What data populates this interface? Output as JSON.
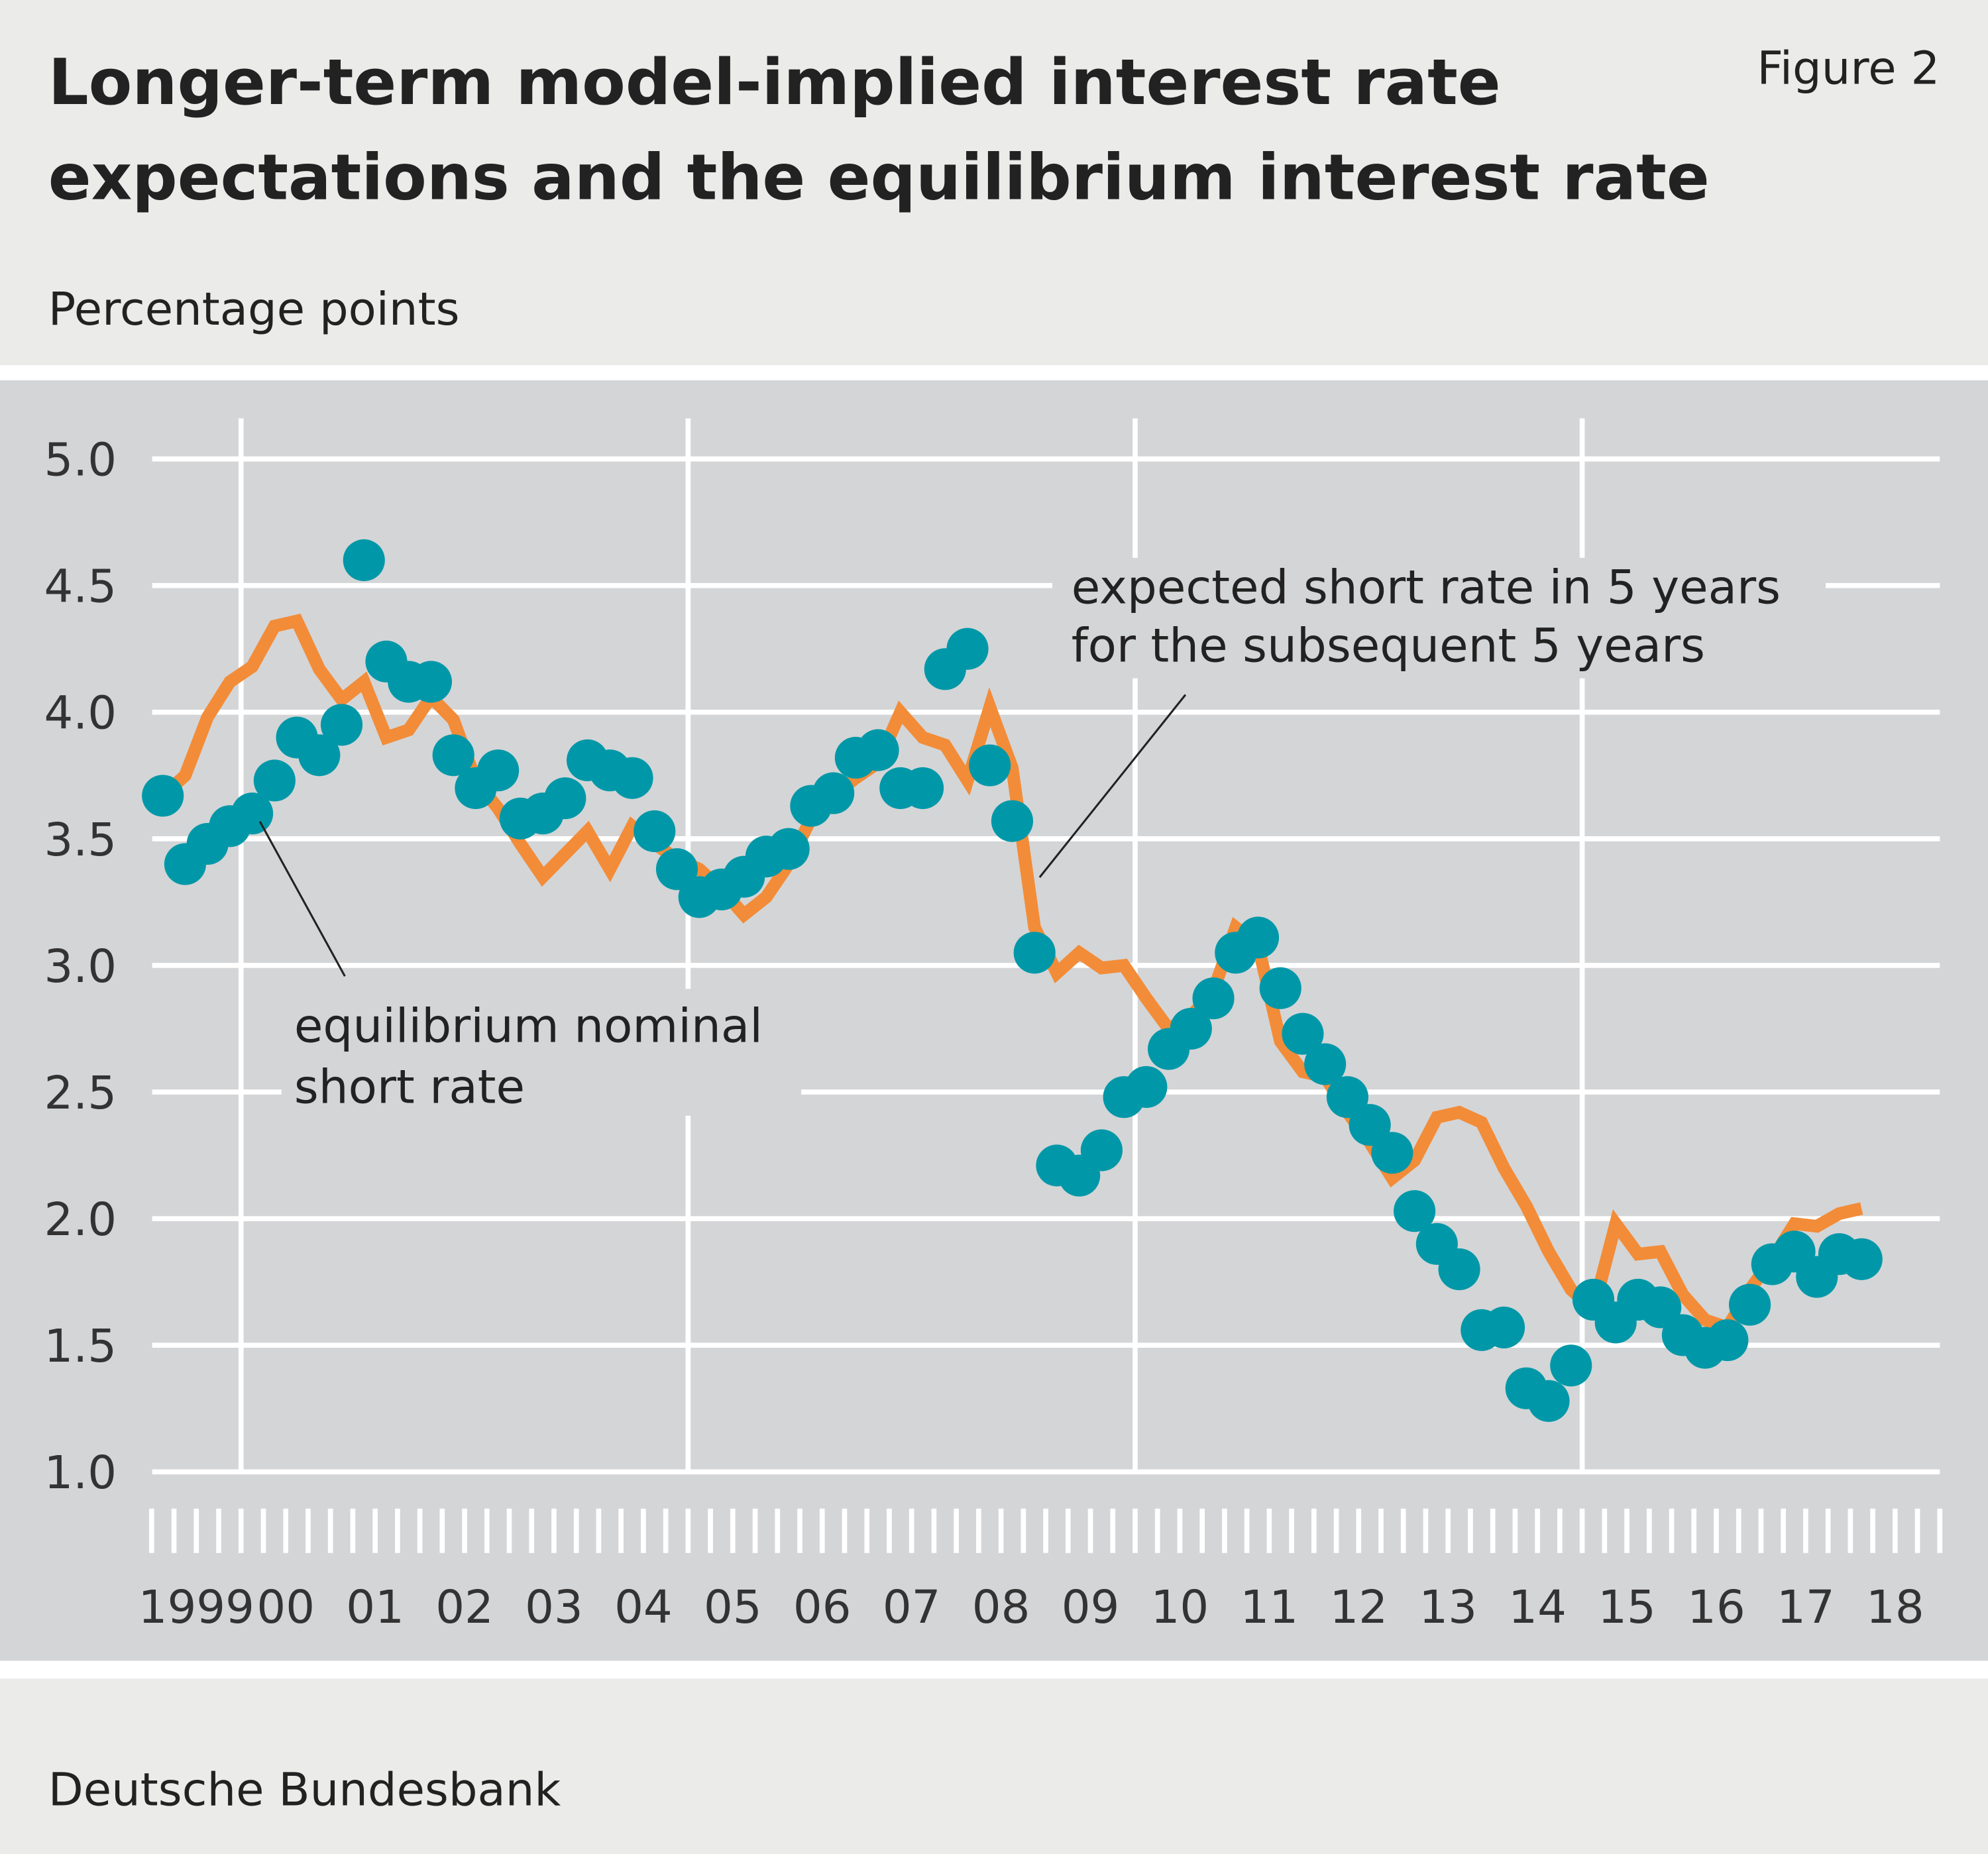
{
  "figure_label": "Figure 2",
  "source": "Deutsche Bundesbank",
  "chart_data": {
    "type": "line",
    "title_lines": [
      "Longer-term model-implied interest rate",
      "expectations and the equilibrium interest rate"
    ],
    "y_label": "Percentage points",
    "xlim": [
      1999,
      2019
    ],
    "xticks": [
      {
        "value": 1999.5,
        "label": "1999"
      },
      {
        "value": 2000.5,
        "label": "00"
      },
      {
        "value": 2001.5,
        "label": "01"
      },
      {
        "value": 2002.5,
        "label": "02"
      },
      {
        "value": 2003.5,
        "label": "03"
      },
      {
        "value": 2004.5,
        "label": "04"
      },
      {
        "value": 2005.5,
        "label": "05"
      },
      {
        "value": 2006.5,
        "label": "06"
      },
      {
        "value": 2007.5,
        "label": "07"
      },
      {
        "value": 2008.5,
        "label": "08"
      },
      {
        "value": 2009.5,
        "label": "09"
      },
      {
        "value": 2010.5,
        "label": "10"
      },
      {
        "value": 2011.5,
        "label": "11"
      },
      {
        "value": 2012.5,
        "label": "12"
      },
      {
        "value": 2013.5,
        "label": "13"
      },
      {
        "value": 2014.5,
        "label": "14"
      },
      {
        "value": 2015.5,
        "label": "15"
      },
      {
        "value": 2016.5,
        "label": "16"
      },
      {
        "value": 2017.5,
        "label": "17"
      },
      {
        "value": 2018.5,
        "label": "18"
      }
    ],
    "xgrid": [
      2000,
      2005,
      2010,
      2015
    ],
    "ylim": [
      1.0,
      5.0
    ],
    "yticks": [
      {
        "value": 1.0,
        "label": "1.0"
      },
      1.5,
      {
        "value": 2.0,
        "label": "2.0"
      },
      2.5,
      {
        "value": 3.0,
        "label": "3.0"
      },
      3.5,
      {
        "value": 4.0,
        "label": "4.0"
      },
      4.5,
      {
        "value": 5.0,
        "label": "5.0"
      }
    ],
    "grid": true,
    "x": [
      1999.125,
      1999.375,
      1999.625,
      1999.875,
      2000.125,
      2000.375,
      2000.625,
      2000.875,
      2001.125,
      2001.375,
      2001.625,
      2001.875,
      2002.125,
      2002.375,
      2002.625,
      2002.875,
      2003.125,
      2003.375,
      2003.625,
      2003.875,
      2004.125,
      2004.375,
      2004.625,
      2004.875,
      2005.125,
      2005.375,
      2005.625,
      2005.875,
      2006.125,
      2006.375,
      2006.625,
      2006.875,
      2007.125,
      2007.375,
      2007.625,
      2007.875,
      2008.125,
      2008.375,
      2008.625,
      2008.875,
      2009.125,
      2009.375,
      2009.625,
      2009.875,
      2010.125,
      2010.375,
      2010.625,
      2010.875,
      2011.125,
      2011.375,
      2011.625,
      2011.875,
      2012.125,
      2012.375,
      2012.625,
      2012.875,
      2013.125,
      2013.375,
      2013.625,
      2013.875,
      2014.125,
      2014.375,
      2014.625,
      2014.875,
      2015.125,
      2015.375,
      2015.625,
      2015.875,
      2016.125,
      2016.375,
      2016.625,
      2016.875,
      2017.125,
      2017.375,
      2017.625,
      2017.875,
      2018.125
    ],
    "series": [
      {
        "style": "line",
        "color": "#f28c38",
        "values": [
          3.67,
          3.75,
          3.98,
          4.12,
          4.18,
          4.34,
          4.36,
          4.17,
          4.05,
          4.12,
          3.9,
          3.93,
          4.06,
          3.97,
          3.73,
          3.62,
          3.48,
          3.35,
          3.44,
          3.53,
          3.38,
          3.55,
          3.48,
          3.42,
          3.38,
          3.3,
          3.2,
          3.27,
          3.4,
          3.58,
          3.67,
          3.74,
          3.8,
          4.0,
          3.9,
          3.87,
          3.73,
          4.02,
          3.78,
          3.15,
          2.97,
          3.05,
          2.99,
          3.0,
          2.87,
          2.75,
          2.8,
          2.9,
          3.15,
          3.08,
          2.7,
          2.58,
          2.56,
          2.42,
          2.3,
          2.16,
          2.23,
          2.4,
          2.42,
          2.38,
          2.2,
          2.05,
          1.87,
          1.72,
          1.64,
          1.98,
          1.86,
          1.87,
          1.7,
          1.6,
          1.57,
          1.72,
          1.84,
          1.98,
          1.97,
          2.02,
          2.04
        ]
      },
      {
        "style": "dots",
        "color": "#0098a8",
        "values": [
          3.67,
          3.4,
          3.48,
          3.55,
          3.6,
          3.73,
          3.9,
          3.83,
          3.95,
          4.6,
          4.2,
          4.12,
          4.12,
          3.83,
          3.7,
          3.77,
          3.58,
          3.6,
          3.66,
          3.81,
          3.77,
          3.74,
          3.53,
          3.38,
          3.27,
          3.3,
          3.35,
          3.43,
          3.46,
          3.63,
          3.68,
          3.82,
          3.85,
          3.7,
          3.7,
          4.17,
          4.25,
          3.79,
          3.57,
          3.05,
          2.21,
          2.17,
          2.27,
          2.48,
          2.52,
          2.67,
          2.75,
          2.87,
          3.05,
          3.11,
          2.91,
          2.73,
          2.61,
          2.48,
          2.37,
          2.26,
          2.03,
          1.9,
          1.8,
          1.56,
          1.57,
          1.33,
          1.28,
          1.42,
          1.68,
          1.59,
          1.68,
          1.65,
          1.54,
          1.49,
          1.52,
          1.66,
          1.82,
          1.87,
          1.77,
          1.86,
          1.84
        ]
      }
    ],
    "annotations": [
      {
        "lines": [
          "expected short rate in 5 years",
          "for the subsequent 5 years"
        ]
      },
      {
        "lines": [
          "equilibrium nominal",
          "short rate"
        ]
      }
    ]
  }
}
